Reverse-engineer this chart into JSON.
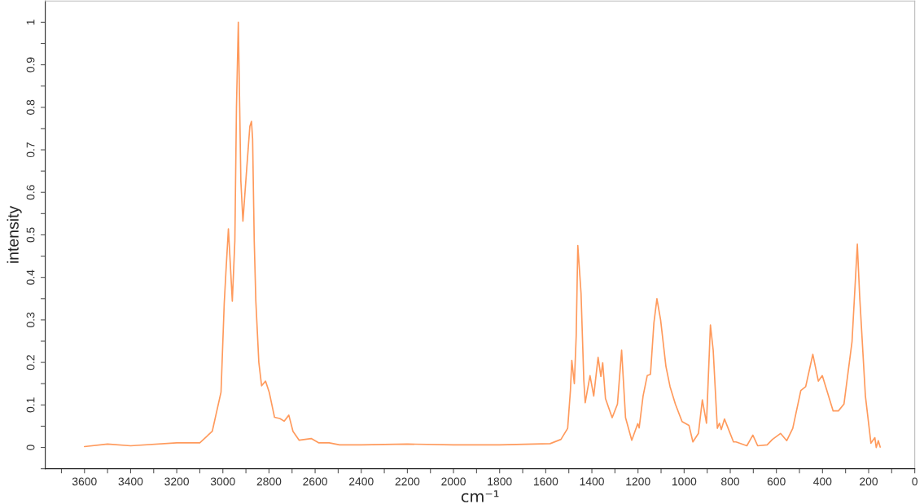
{
  "chart_data": {
    "type": "line",
    "xlabel": "cm⁻¹",
    "ylabel": "intensity",
    "xlim": [
      3770,
      0
    ],
    "ylim": [
      -0.05,
      1.05
    ],
    "xticks": [
      {
        "value": 3700,
        "label": null
      },
      3600,
      {
        "value": 3500,
        "label": null
      },
      3400,
      {
        "value": 3300,
        "label": null
      },
      3200,
      {
        "value": 3100,
        "label": null
      },
      3000,
      {
        "value": 2900,
        "label": null
      },
      2800,
      {
        "value": 2700,
        "label": null
      },
      2600,
      {
        "value": 2500,
        "label": null
      },
      2400,
      {
        "value": 2300,
        "label": null
      },
      2200,
      {
        "value": 2100,
        "label": null
      },
      2000,
      {
        "value": 1900,
        "label": null
      },
      1800,
      {
        "value": 1700,
        "label": null
      },
      1600,
      {
        "value": 1500,
        "label": null
      },
      1400,
      {
        "value": 1300,
        "label": null
      },
      1200,
      {
        "value": 1100,
        "label": null
      },
      1000,
      {
        "value": 900,
        "label": null
      },
      800,
      {
        "value": 700,
        "label": null
      },
      600,
      {
        "value": 500,
        "label": null
      },
      400,
      {
        "value": 300,
        "label": null
      },
      200,
      {
        "value": 100,
        "label": null
      },
      0
    ],
    "yticks": [
      {
        "value": -0.05,
        "label": null
      },
      0,
      {
        "value": 0.05,
        "label": null
      },
      0.1,
      {
        "value": 0.15,
        "label": null
      },
      0.2,
      {
        "value": 0.25,
        "label": null
      },
      0.3,
      {
        "value": 0.35,
        "label": null
      },
      0.4,
      {
        "value": 0.45,
        "label": null
      },
      0.5,
      {
        "value": 0.55,
        "label": null
      },
      0.6,
      {
        "value": 0.65,
        "label": null
      },
      0.7,
      {
        "value": 0.75,
        "label": null
      },
      0.8,
      {
        "value": 0.85,
        "label": null
      },
      0.9,
      {
        "value": 0.95,
        "label": null
      },
      1
    ],
    "grid": false,
    "legend": false,
    "marker": "none",
    "line_style": "solid",
    "series": [
      {
        "color": "#ff9a5c",
        "x": [
          3600,
          3500,
          3400,
          3200,
          3100,
          3046,
          3008,
          2994,
          2987,
          2976,
          2959,
          2948,
          2941,
          2933,
          2927,
          2922,
          2913,
          2896,
          2883,
          2876,
          2871,
          2864,
          2857,
          2844,
          2832,
          2815,
          2799,
          2776,
          2753,
          2734,
          2714,
          2696,
          2669,
          2617,
          2585,
          2539,
          2494,
          2400,
          2200,
          2000,
          1800,
          1581,
          1534,
          1505,
          1493,
          1487,
          1476,
          1468,
          1461,
          1447,
          1435,
          1429,
          1408,
          1392,
          1373,
          1361,
          1353,
          1341,
          1312,
          1289,
          1271,
          1254,
          1227,
          1201,
          1195,
          1178,
          1160,
          1146,
          1131,
          1118,
          1102,
          1079,
          1061,
          1038,
          1009,
          979,
          962,
          938,
          921,
          903,
          886,
          874,
          856,
          847,
          839,
          825,
          786,
          775,
          728,
          702,
          681,
          640,
          617,
          582,
          555,
          529,
          494,
          473,
          442,
          418,
          401,
          354,
          331,
          307,
          272,
          249,
          239,
          214,
          190,
          173,
          167,
          158,
          150
        ],
        "values": [
          0.002,
          0.008,
          0.004,
          0.011,
          0.011,
          0.038,
          0.13,
          0.34,
          0.41,
          0.514,
          0.344,
          0.486,
          0.8,
          1.0,
          0.8,
          0.627,
          0.532,
          0.66,
          0.755,
          0.767,
          0.726,
          0.486,
          0.344,
          0.2,
          0.145,
          0.156,
          0.13,
          0.071,
          0.068,
          0.062,
          0.076,
          0.038,
          0.017,
          0.021,
          0.011,
          0.011,
          0.006,
          0.006,
          0.008,
          0.006,
          0.006,
          0.009,
          0.019,
          0.045,
          0.134,
          0.205,
          0.15,
          0.262,
          0.475,
          0.363,
          0.159,
          0.105,
          0.169,
          0.121,
          0.212,
          0.167,
          0.199,
          0.115,
          0.07,
          0.102,
          0.229,
          0.07,
          0.017,
          0.056,
          0.046,
          0.121,
          0.169,
          0.172,
          0.293,
          0.35,
          0.3,
          0.191,
          0.143,
          0.102,
          0.061,
          0.052,
          0.013,
          0.033,
          0.112,
          0.057,
          0.288,
          0.229,
          0.045,
          0.057,
          0.042,
          0.067,
          0.013,
          0.013,
          0.004,
          0.029,
          0.004,
          0.006,
          0.019,
          0.033,
          0.016,
          0.045,
          0.134,
          0.143,
          0.219,
          0.156,
          0.169,
          0.086,
          0.086,
          0.102,
          0.249,
          0.478,
          0.357,
          0.121,
          0.01,
          0.023,
          0.0,
          0.016,
          0.001
        ]
      }
    ]
  }
}
